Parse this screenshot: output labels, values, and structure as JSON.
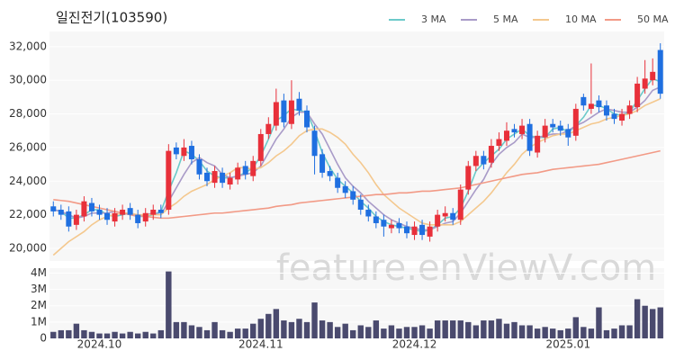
{
  "chart_data": {
    "type": "candlestick",
    "title": "일진전기(103590)",
    "watermark": "feature.enViewV.com",
    "categories": [
      null,
      null,
      null,
      null,
      null,
      null,
      "2024.10",
      null,
      null,
      null,
      null,
      null,
      null,
      null,
      null,
      null,
      null,
      null,
      null,
      null,
      null,
      null,
      null,
      null,
      null,
      null,
      null,
      "2024.11",
      null,
      null,
      null,
      null,
      null,
      null,
      null,
      null,
      null,
      null,
      null,
      null,
      null,
      null,
      null,
      null,
      null,
      null,
      null,
      "2024.12",
      null,
      null,
      null,
      null,
      null,
      null,
      null,
      null,
      null,
      null,
      null,
      null,
      null,
      null,
      null,
      null,
      null,
      null,
      null,
      "2025.01",
      null,
      null,
      null,
      null,
      null,
      null,
      null,
      null,
      null,
      null,
      null,
      null
    ],
    "up_color": "#e8303a",
    "down_color": "#1f6fe0",
    "ohlc": {
      "open": [
        22500,
        22300,
        22200,
        21400,
        21900,
        22700,
        22300,
        22100,
        21600,
        22000,
        22400,
        22000,
        21600,
        22000,
        22300,
        22300,
        26000,
        25500,
        26100,
        25300,
        24500,
        23900,
        24500,
        23800,
        24100,
        24900,
        24300,
        25200,
        26800,
        27300,
        28800,
        27400,
        28900,
        28200,
        27000,
        25600,
        24600,
        24200,
        23700,
        23400,
        22900,
        22300,
        21900,
        21700,
        21200,
        21500,
        21300,
        20800,
        21400,
        20700,
        21300,
        21900,
        22100,
        21700,
        23500,
        24900,
        25500,
        25100,
        26100,
        26400,
        27100,
        26800,
        27400,
        25700,
        26600,
        27400,
        27300,
        27100,
        26700,
        29000,
        28300,
        28800,
        28500,
        28000,
        27600,
        28000,
        28400,
        29500,
        30000,
        31800
      ],
      "high": [
        22800,
        22600,
        22500,
        22300,
        23100,
        23000,
        22600,
        22400,
        22400,
        22600,
        22700,
        22300,
        22400,
        22600,
        22600,
        26200,
        26300,
        26500,
        26400,
        25600,
        24800,
        24900,
        24800,
        24500,
        25100,
        25200,
        25500,
        27100,
        27800,
        29500,
        29200,
        30000,
        29300,
        28500,
        27300,
        25900,
        24900,
        24500,
        24000,
        23700,
        23200,
        22600,
        22200,
        22000,
        21700,
        21800,
        21600,
        21600,
        21700,
        21600,
        22300,
        22500,
        22400,
        23800,
        25200,
        25800,
        25800,
        26500,
        26900,
        27500,
        27400,
        27700,
        27700,
        27000,
        27700,
        27700,
        27600,
        27400,
        28600,
        29200,
        31000,
        29100,
        28800,
        28300,
        28300,
        28800,
        30200,
        31200,
        31300,
        32200
      ],
      "low": [
        21900,
        21700,
        21000,
        21100,
        21600,
        21900,
        21700,
        21400,
        21300,
        21700,
        21700,
        21200,
        21300,
        21700,
        21800,
        22000,
        25300,
        25200,
        25000,
        24100,
        23700,
        23600,
        23600,
        23500,
        23800,
        24100,
        24000,
        24900,
        26500,
        27000,
        27200,
        27100,
        27900,
        26900,
        24400,
        24200,
        24000,
        23300,
        23000,
        22600,
        22000,
        21600,
        21200,
        20700,
        20900,
        20900,
        20600,
        20500,
        20500,
        20400,
        21000,
        21600,
        21400,
        21400,
        23200,
        24600,
        24700,
        24800,
        25800,
        26100,
        26600,
        26500,
        25500,
        25400,
        26300,
        26900,
        26700,
        26100,
        26400,
        28200,
        28000,
        28100,
        27600,
        27400,
        27300,
        27700,
        28100,
        29200,
        29700,
        28900
      ],
      "close": [
        22200,
        22000,
        21300,
        22000,
        22800,
        22200,
        22000,
        21700,
        22100,
        22300,
        22000,
        21500,
        22100,
        22300,
        22100,
        25800,
        25600,
        26000,
        25300,
        24400,
        24000,
        24600,
        23900,
        24200,
        24800,
        24400,
        25200,
        26800,
        27400,
        28700,
        27500,
        28800,
        28200,
        27200,
        25500,
        24500,
        24300,
        23600,
        23300,
        22900,
        22300,
        21900,
        21500,
        21300,
        21400,
        21200,
        20900,
        21300,
        20800,
        21300,
        22000,
        22100,
        21700,
        23500,
        24900,
        25500,
        25000,
        26100,
        26500,
        27000,
        26900,
        27300,
        25800,
        26700,
        27300,
        27200,
        27000,
        26600,
        28300,
        28500,
        28600,
        28400,
        27900,
        27700,
        28000,
        28500,
        29800,
        30100,
        30500,
        29200
      ]
    },
    "series": [
      {
        "name": "3 MA",
        "color": "#6ccaca",
        "values": [
          22300,
          22200,
          21800,
          21800,
          22000,
          22300,
          22300,
          22000,
          21900,
          22000,
          22100,
          21900,
          21900,
          22000,
          22200,
          23400,
          24500,
          25800,
          25600,
          25200,
          24600,
          24300,
          24200,
          24200,
          24300,
          24500,
          24800,
          25500,
          26500,
          27600,
          27900,
          28300,
          28200,
          28100,
          27000,
          25700,
          24800,
          24100,
          23700,
          23300,
          22800,
          22400,
          21900,
          21600,
          21400,
          21300,
          21200,
          21100,
          21000,
          21100,
          21400,
          21800,
          21900,
          22400,
          23400,
          24600,
          25100,
          25500,
          25900,
          26500,
          26800,
          27100,
          26700,
          26600,
          26600,
          27100,
          27200,
          26900,
          27300,
          27800,
          28500,
          28500,
          28300,
          28000,
          27900,
          28100,
          28800,
          29500,
          30100,
          29900
        ]
      },
      {
        "name": "5 MA",
        "color": "#a99bc8",
        "values": [
          22300,
          22200,
          22000,
          21800,
          21900,
          22100,
          22100,
          22100,
          22200,
          22100,
          22000,
          21900,
          22000,
          22100,
          22000,
          22800,
          23600,
          24400,
          25100,
          25400,
          25100,
          24900,
          24400,
          24200,
          24300,
          24400,
          24500,
          24900,
          25700,
          26500,
          27100,
          27800,
          28100,
          28100,
          27400,
          26800,
          25900,
          25000,
          24200,
          23700,
          23300,
          22800,
          22400,
          22000,
          21700,
          21500,
          21300,
          21200,
          21100,
          21100,
          21300,
          21500,
          21600,
          22100,
          22800,
          23500,
          24100,
          25000,
          25600,
          26000,
          26300,
          26800,
          26600,
          26600,
          26700,
          26800,
          26800,
          27000,
          27300,
          27500,
          27800,
          28100,
          28300,
          28200,
          28100,
          28100,
          28400,
          28800,
          29400,
          29600
        ]
      },
      {
        "name": "10 MA",
        "color": "#f4c88e",
        "values": [
          19600,
          20000,
          20400,
          20700,
          21000,
          21400,
          21700,
          21900,
          22000,
          22100,
          22100,
          22000,
          22000,
          22000,
          22000,
          22400,
          22700,
          23100,
          23400,
          23600,
          23800,
          24100,
          24300,
          24500,
          24800,
          24800,
          24700,
          24800,
          25100,
          25500,
          25800,
          26200,
          26700,
          27000,
          27100,
          27100,
          26900,
          26600,
          26200,
          25600,
          25100,
          24500,
          23800,
          23200,
          22800,
          22400,
          22100,
          21800,
          21500,
          21400,
          21400,
          21400,
          21400,
          21600,
          22000,
          22400,
          22800,
          23300,
          23900,
          24500,
          25000,
          25600,
          26000,
          26300,
          26500,
          26700,
          26800,
          26800,
          27000,
          27200,
          27400,
          27500,
          27700,
          27800,
          27900,
          28000,
          28200,
          28500,
          28700,
          28900
        ]
      },
      {
        "name": "50 MA",
        "color": "#f29a86",
        "values": [
          22900,
          22850,
          22800,
          22700,
          22600,
          22500,
          22400,
          22300,
          22200,
          22100,
          22000,
          21950,
          21900,
          21850,
          21800,
          21800,
          21850,
          21900,
          21950,
          22000,
          22050,
          22100,
          22100,
          22150,
          22200,
          22250,
          22300,
          22350,
          22400,
          22500,
          22550,
          22600,
          22700,
          22750,
          22800,
          22850,
          22900,
          22950,
          23000,
          23050,
          23100,
          23150,
          23200,
          23200,
          23250,
          23300,
          23300,
          23350,
          23400,
          23400,
          23450,
          23500,
          23550,
          23600,
          23700,
          23800,
          23900,
          24000,
          24100,
          24200,
          24300,
          24400,
          24450,
          24500,
          24600,
          24700,
          24750,
          24800,
          24850,
          24900,
          24950,
          25000,
          25100,
          25200,
          25300,
          25400,
          25500,
          25600,
          25700,
          25800
        ]
      }
    ],
    "ylim": [
      19250,
      32900
    ],
    "yticks": [
      {
        "value": 20000,
        "label": "20,000"
      },
      {
        "value": 22000,
        "label": "22,000"
      },
      {
        "value": 24000,
        "label": "24,000"
      },
      {
        "value": 26000,
        "label": "26,000"
      },
      {
        "value": 28000,
        "label": "28,000"
      },
      {
        "value": 30000,
        "label": "30,000"
      },
      {
        "value": 32000,
        "label": "32,000"
      }
    ],
    "volume": {
      "color": "#4a4a6e",
      "values": [
        400000,
        500000,
        500000,
        900000,
        500000,
        400000,
        300000,
        300000,
        400000,
        300000,
        400000,
        300000,
        400000,
        300000,
        500000,
        4100000,
        1000000,
        1000000,
        800000,
        700000,
        500000,
        1000000,
        500000,
        400000,
        600000,
        600000,
        900000,
        1200000,
        1500000,
        1800000,
        1100000,
        1000000,
        1200000,
        1000000,
        2200000,
        1100000,
        1000000,
        700000,
        900000,
        500000,
        800000,
        700000,
        1100000,
        600000,
        800000,
        600000,
        700000,
        700000,
        800000,
        600000,
        1100000,
        1100000,
        1100000,
        1100000,
        1000000,
        800000,
        1100000,
        1100000,
        1200000,
        900000,
        1000000,
        800000,
        800000,
        600000,
        700000,
        600000,
        500000,
        600000,
        1300000,
        700000,
        600000,
        1900000,
        500000,
        600000,
        800000,
        800000,
        2400000,
        2000000,
        1800000,
        1900000
      ],
      "ylim": [
        0,
        4300000
      ],
      "yticks": [
        0,
        {
          "value": 1000000,
          "label": "1M"
        },
        {
          "value": 2000000,
          "label": "2M"
        },
        {
          "value": 3000000,
          "label": "3M"
        },
        {
          "value": 4000000,
          "label": "4M"
        }
      ]
    }
  }
}
